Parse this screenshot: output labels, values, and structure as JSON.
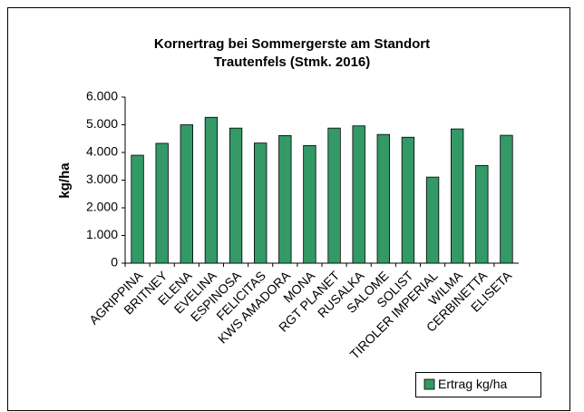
{
  "chart_data": {
    "type": "bar",
    "title": [
      "Kornertrag bei Sommergerste am Standort",
      "Trautenfels (Stmk. 2016)"
    ],
    "y_label": "kg/ha",
    "categories": [
      "AGRIPPINA",
      "BRITNEY",
      "ELENA",
      "EVELINA",
      "ESPINOSA",
      "FELICITAS",
      "KWS AMADORA",
      "MONA",
      "RGT PLANET",
      "RUSALKA",
      "SALOME",
      "SOLIST",
      "TIROLER IMPERIAL",
      "WILMA",
      "CERBINETTA",
      "ELISETA"
    ],
    "series": [
      {
        "name": "Ertrag kg/ha",
        "color": "#339966",
        "values": [
          3900,
          4330,
          5000,
          5270,
          4880,
          4340,
          4610,
          4250,
          4880,
          4960,
          4650,
          4550,
          3110,
          4850,
          3530,
          4620
        ]
      }
    ],
    "ylim": [
      0,
      6000
    ],
    "yticks": [
      0,
      {
        "value": 1000,
        "label": "1.000"
      },
      {
        "value": 2000,
        "label": "2.000"
      },
      {
        "value": 3000,
        "label": "3.000"
      },
      {
        "value": 4000,
        "label": "4.000"
      },
      {
        "value": 5000,
        "label": "5.000"
      },
      {
        "value": 6000,
        "label": "6.000"
      }
    ],
    "grid": false,
    "legend": "bottom-right"
  }
}
